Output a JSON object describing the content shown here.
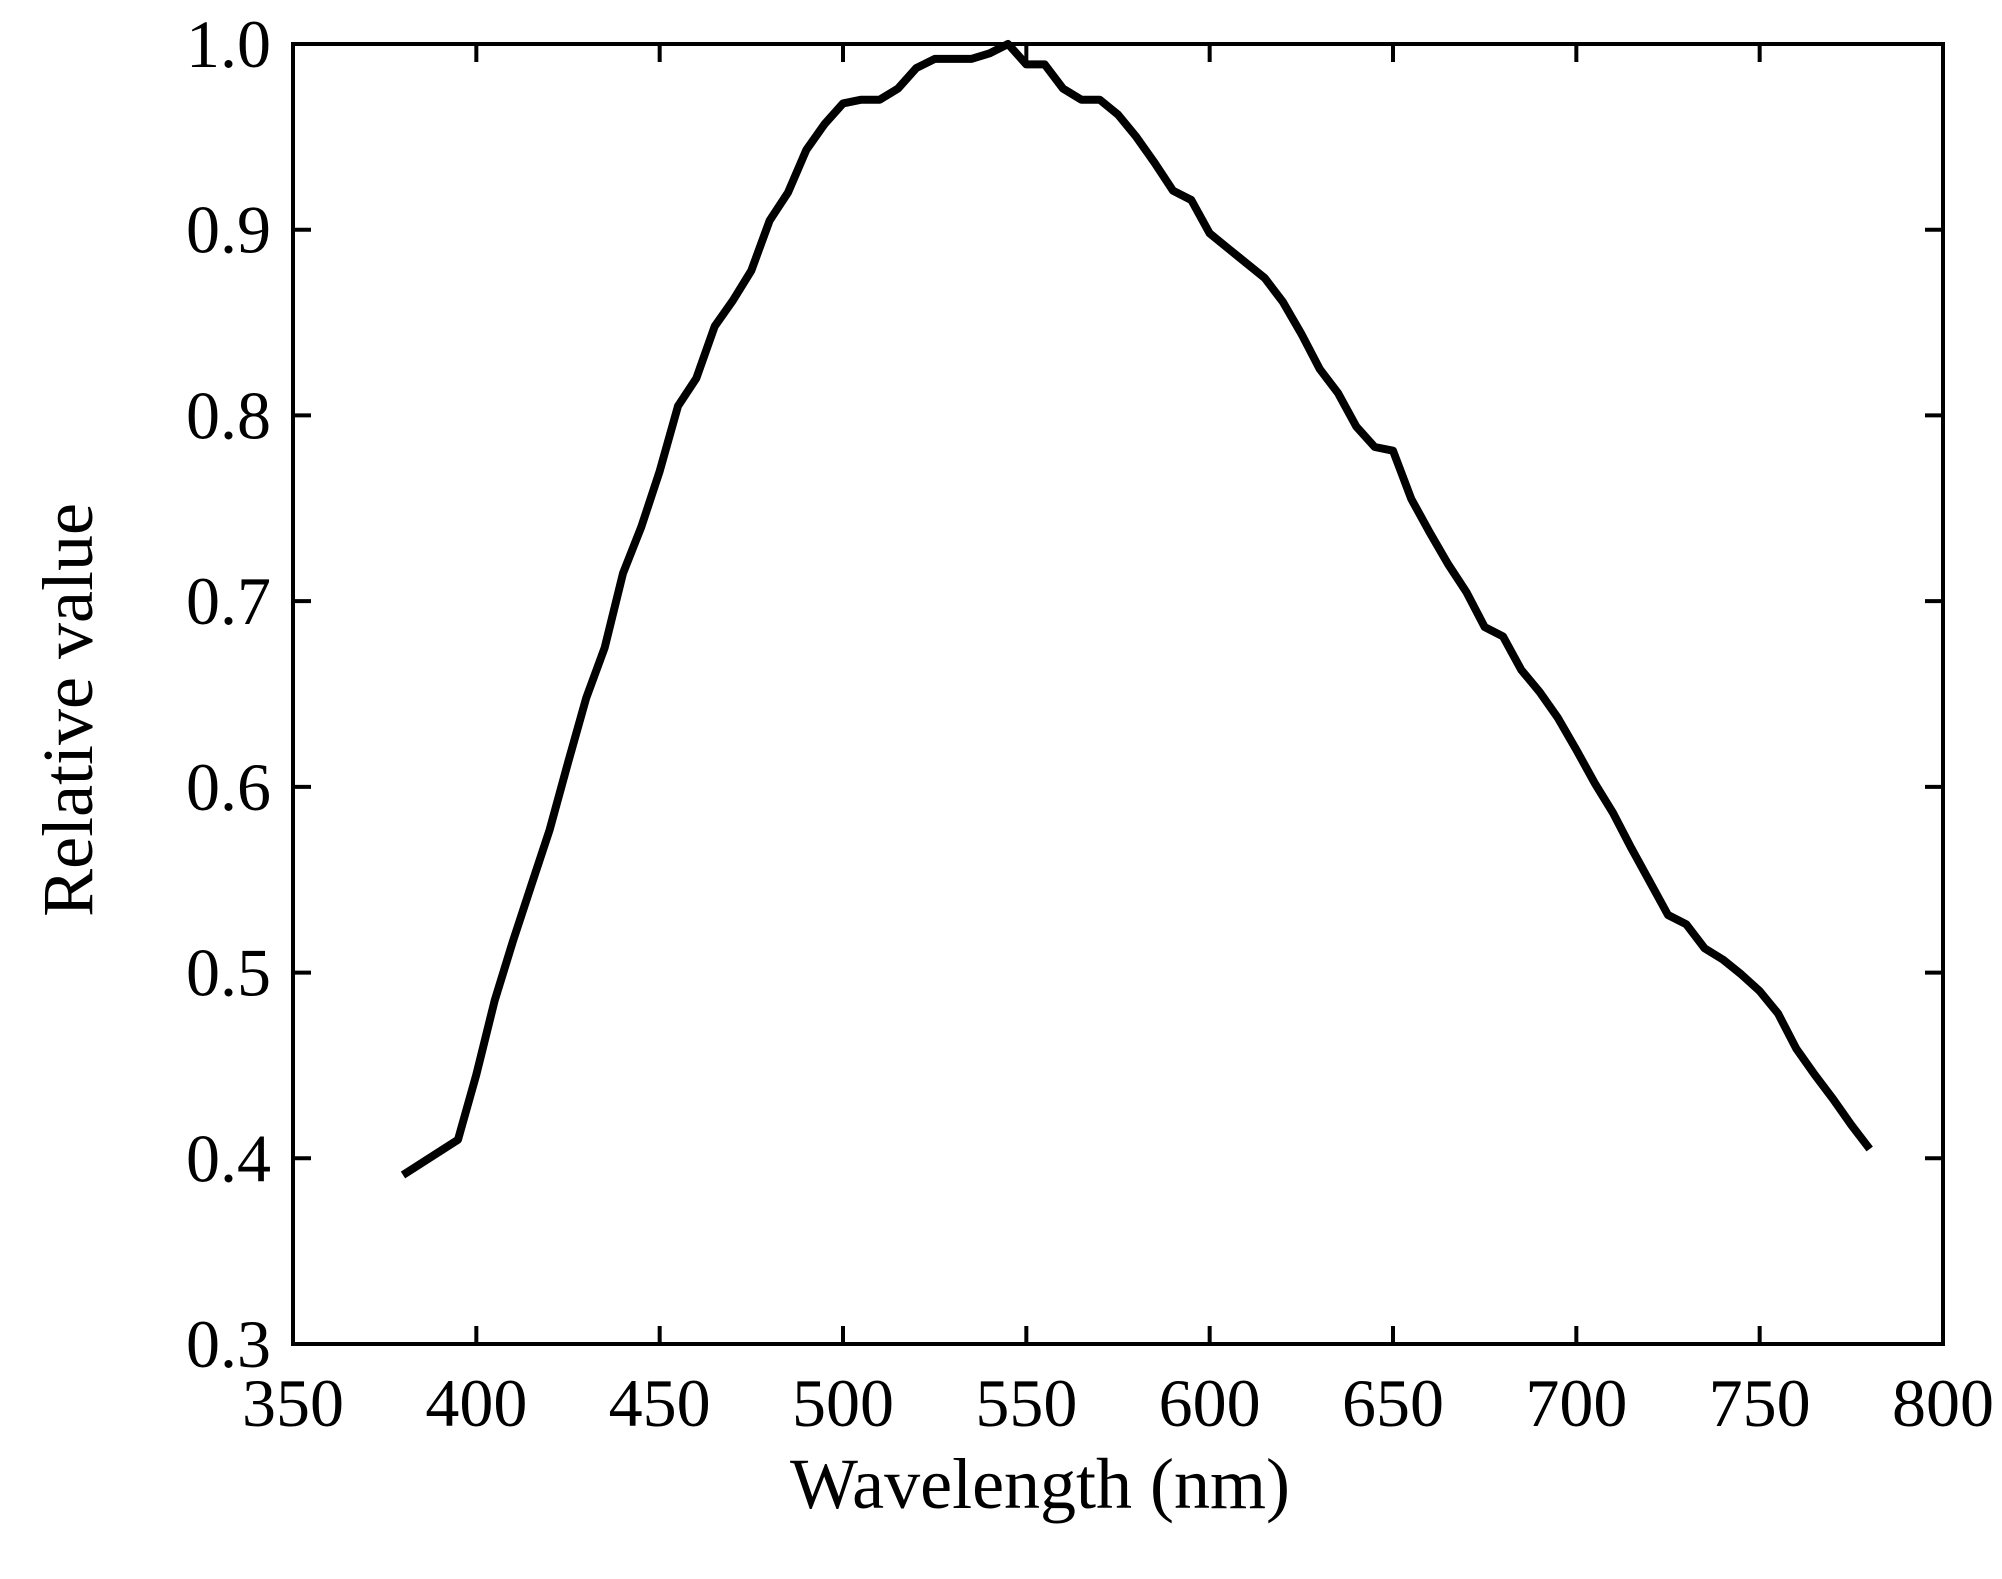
{
  "chart_data": {
    "type": "line",
    "title": "",
    "xlabel": "Wavelength (nm)",
    "ylabel": "Relative value",
    "xlim": [
      350,
      800
    ],
    "ylim": [
      0.3,
      1.0
    ],
    "xticks": [
      350,
      400,
      450,
      500,
      550,
      600,
      650,
      700,
      750,
      800
    ],
    "yticks": [
      0.3,
      0.4,
      0.5,
      0.6,
      0.7,
      0.8,
      0.9,
      1.0
    ],
    "xtick_labels": [
      "350",
      "400",
      "450",
      "500",
      "550",
      "600",
      "650",
      "700",
      "750",
      "800"
    ],
    "ytick_labels": [
      "0.3",
      "0.4",
      "0.5",
      "0.6",
      "0.7",
      "0.8",
      "0.9",
      "1.0"
    ],
    "grid": false,
    "legend": "none",
    "line_color": "#000000",
    "series": [
      {
        "x": [
          380,
          395,
          400,
          405,
          410,
          415,
          420,
          425,
          430,
          435,
          440,
          445,
          450,
          455,
          460,
          465,
          470,
          475,
          480,
          485,
          490,
          495,
          500,
          505,
          510,
          515,
          520,
          525,
          530,
          535,
          540,
          545,
          550,
          555,
          560,
          565,
          570,
          575,
          580,
          585,
          590,
          595,
          600,
          605,
          610,
          615,
          620,
          625,
          630,
          635,
          640,
          645,
          650,
          655,
          660,
          665,
          670,
          675,
          680,
          685,
          690,
          695,
          700,
          705,
          710,
          715,
          720,
          725,
          730,
          735,
          740,
          745,
          750,
          755,
          760,
          765,
          770,
          775,
          780
        ],
        "y": [
          0.391,
          0.41,
          0.445,
          0.485,
          0.517,
          0.547,
          0.577,
          0.613,
          0.648,
          0.675,
          0.715,
          0.74,
          0.77,
          0.805,
          0.82,
          0.848,
          0.862,
          0.878,
          0.905,
          0.92,
          0.943,
          0.957,
          0.968,
          0.97,
          0.97,
          0.976,
          0.987,
          0.992,
          0.992,
          0.992,
          0.995,
          1.0,
          0.989,
          0.989,
          0.976,
          0.97,
          0.97,
          0.962,
          0.95,
          0.936,
          0.921,
          0.916,
          0.898,
          0.89,
          0.882,
          0.874,
          0.861,
          0.844,
          0.825,
          0.812,
          0.794,
          0.783,
          0.781,
          0.755,
          0.737,
          0.72,
          0.705,
          0.686,
          0.681,
          0.663,
          0.651,
          0.637,
          0.62,
          0.602,
          0.586,
          0.567,
          0.549,
          0.531,
          0.526,
          0.513,
          0.507,
          0.499,
          0.49,
          0.478,
          0.459,
          0.445,
          0.432,
          0.418,
          0.405
        ]
      }
    ]
  }
}
